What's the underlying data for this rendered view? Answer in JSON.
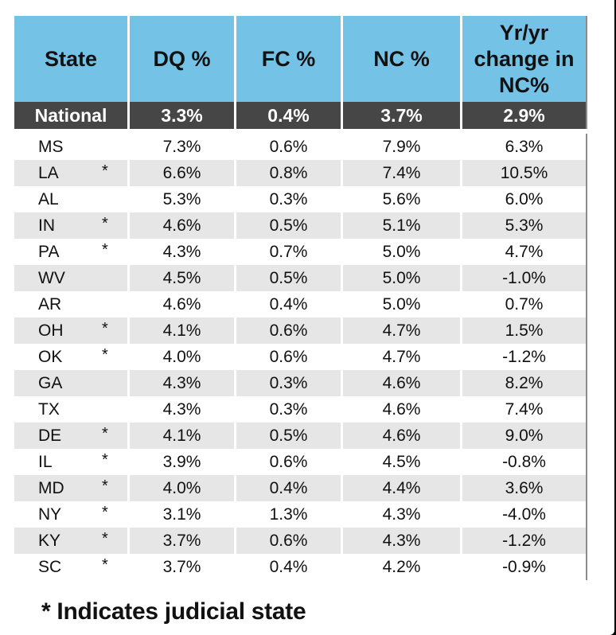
{
  "chart_data": {
    "type": "table",
    "columns": [
      "State",
      "DQ %",
      "FC %",
      "NC %",
      "Yr/yr change in NC%"
    ],
    "national": {
      "state": "National",
      "dq": "3.3%",
      "fc": "0.4%",
      "nc": "3.7%",
      "yoy": "2.9%"
    },
    "rows": [
      {
        "state": "MS",
        "judicial": "",
        "dq": "7.3%",
        "fc": "0.6%",
        "nc": "7.9%",
        "yoy": "6.3%"
      },
      {
        "state": "LA",
        "judicial": "*",
        "dq": "6.6%",
        "fc": "0.8%",
        "nc": "7.4%",
        "yoy": "10.5%"
      },
      {
        "state": "AL",
        "judicial": "",
        "dq": "5.3%",
        "fc": "0.3%",
        "nc": "5.6%",
        "yoy": "6.0%"
      },
      {
        "state": "IN",
        "judicial": "*",
        "dq": "4.6%",
        "fc": "0.5%",
        "nc": "5.1%",
        "yoy": "5.3%"
      },
      {
        "state": "PA",
        "judicial": "*",
        "dq": "4.3%",
        "fc": "0.7%",
        "nc": "5.0%",
        "yoy": "4.7%"
      },
      {
        "state": "WV",
        "judicial": "",
        "dq": "4.5%",
        "fc": "0.5%",
        "nc": "5.0%",
        "yoy": "-1.0%"
      },
      {
        "state": "AR",
        "judicial": "",
        "dq": "4.6%",
        "fc": "0.4%",
        "nc": "5.0%",
        "yoy": "0.7%"
      },
      {
        "state": "OH",
        "judicial": "*",
        "dq": "4.1%",
        "fc": "0.6%",
        "nc": "4.7%",
        "yoy": "1.5%"
      },
      {
        "state": "OK",
        "judicial": "*",
        "dq": "4.0%",
        "fc": "0.6%",
        "nc": "4.7%",
        "yoy": "-1.2%"
      },
      {
        "state": "GA",
        "judicial": "",
        "dq": "4.3%",
        "fc": "0.3%",
        "nc": "4.6%",
        "yoy": "8.2%"
      },
      {
        "state": "TX",
        "judicial": "",
        "dq": "4.3%",
        "fc": "0.3%",
        "nc": "4.6%",
        "yoy": "7.4%"
      },
      {
        "state": "DE",
        "judicial": "*",
        "dq": "4.1%",
        "fc": "0.5%",
        "nc": "4.6%",
        "yoy": "9.0%"
      },
      {
        "state": "IL",
        "judicial": "*",
        "dq": "3.9%",
        "fc": "0.6%",
        "nc": "4.5%",
        "yoy": "-0.8%"
      },
      {
        "state": "MD",
        "judicial": "*",
        "dq": "4.0%",
        "fc": "0.4%",
        "nc": "4.4%",
        "yoy": "3.6%"
      },
      {
        "state": "NY",
        "judicial": "*",
        "dq": "3.1%",
        "fc": "1.3%",
        "nc": "4.3%",
        "yoy": "-4.0%"
      },
      {
        "state": "KY",
        "judicial": "*",
        "dq": "3.7%",
        "fc": "0.6%",
        "nc": "4.3%",
        "yoy": "-1.2%"
      },
      {
        "state": "SC",
        "judicial": "*",
        "dq": "3.7%",
        "fc": "0.4%",
        "nc": "4.2%",
        "yoy": "-0.9%"
      }
    ],
    "footnote": "* Indicates judicial state",
    "colors": {
      "header": "#74c3e7",
      "national": "#464646",
      "stripe": "#e6e6e6"
    }
  },
  "header": {
    "col_state": "State",
    "col_dq": "DQ %",
    "col_fc": "FC %",
    "col_nc": "NC %",
    "col_yoy_1": "Yr/yr",
    "col_yoy_2": "change in",
    "col_yoy_3": "NC%"
  }
}
